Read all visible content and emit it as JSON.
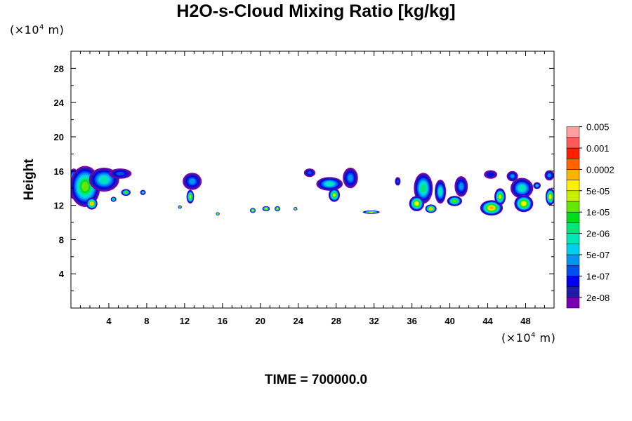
{
  "chart_data": {
    "type": "heatmap",
    "title": "H2O-s-Cloud Mixing Ratio [kg/kg]",
    "ylabel": "Height",
    "y_unit_prefix": "(×10",
    "y_unit_exp": "4",
    "y_unit_suffix": " m)",
    "x_unit_prefix": "(×10",
    "x_unit_exp": "4",
    "x_unit_suffix": " m)",
    "footer": "TIME = 700000.0",
    "xlim": [
      0,
      51
    ],
    "ylim": [
      0,
      30
    ],
    "x_ticks": [
      "4",
      "8",
      "12",
      "16",
      "20",
      "24",
      "28",
      "32",
      "36",
      "40",
      "44",
      "48"
    ],
    "y_ticks": [
      "4",
      "8",
      "12",
      "16",
      "20",
      "24",
      "28"
    ],
    "colorbar": {
      "colors": [
        "#7a00b4",
        "#1c1ca6",
        "#0000f0",
        "#0050f0",
        "#0096f0",
        "#00d0f0",
        "#00e6b4",
        "#00e678",
        "#00dc1e",
        "#64e600",
        "#c8f000",
        "#fff000",
        "#ffb400",
        "#ff6400",
        "#ff1e00",
        "#ff5a5a",
        "#ffa0a0"
      ],
      "labels": [
        "2e-08",
        "1e-07",
        "5e-07",
        "2e-06",
        "1e-05",
        "5e-05",
        "0.0002",
        "0.001",
        "0.005"
      ],
      "label_positions": [
        1,
        3,
        5,
        7,
        9,
        11,
        13,
        15,
        17
      ]
    },
    "cloud_blobs": [
      {
        "x": 0.3,
        "y": 14.5,
        "rx": 0.6,
        "ry": 1.8,
        "level": 11
      },
      {
        "x": 1.5,
        "y": 14.2,
        "rx": 1.6,
        "ry": 2.4,
        "level": 9
      },
      {
        "x": 3.5,
        "y": 15.0,
        "rx": 1.6,
        "ry": 1.4,
        "level": 6
      },
      {
        "x": 5.2,
        "y": 15.7,
        "rx": 1.2,
        "ry": 0.6,
        "level": 3
      },
      {
        "x": 2.2,
        "y": 12.2,
        "rx": 0.6,
        "ry": 0.7,
        "level": 12
      },
      {
        "x": 4.5,
        "y": 12.7,
        "rx": 0.3,
        "ry": 0.3,
        "level": 8
      },
      {
        "x": 5.8,
        "y": 13.5,
        "rx": 0.5,
        "ry": 0.4,
        "level": 9
      },
      {
        "x": 7.6,
        "y": 13.5,
        "rx": 0.3,
        "ry": 0.3,
        "level": 6
      },
      {
        "x": 12.8,
        "y": 14.8,
        "rx": 1.0,
        "ry": 1.0,
        "level": 4
      },
      {
        "x": 12.6,
        "y": 13.0,
        "rx": 0.4,
        "ry": 0.8,
        "level": 10
      },
      {
        "x": 11.5,
        "y": 11.8,
        "rx": 0.2,
        "ry": 0.2,
        "level": 9
      },
      {
        "x": 15.5,
        "y": 11.0,
        "rx": 0.2,
        "ry": 0.2,
        "level": 10
      },
      {
        "x": 19.2,
        "y": 11.4,
        "rx": 0.3,
        "ry": 0.3,
        "level": 11
      },
      {
        "x": 20.6,
        "y": 11.6,
        "rx": 0.4,
        "ry": 0.3,
        "level": 11
      },
      {
        "x": 21.8,
        "y": 11.6,
        "rx": 0.3,
        "ry": 0.3,
        "level": 11
      },
      {
        "x": 23.7,
        "y": 11.6,
        "rx": 0.2,
        "ry": 0.2,
        "level": 10
      },
      {
        "x": 25.2,
        "y": 15.8,
        "rx": 0.6,
        "ry": 0.5,
        "level": 3
      },
      {
        "x": 27.3,
        "y": 14.5,
        "rx": 1.4,
        "ry": 0.8,
        "level": 6
      },
      {
        "x": 27.8,
        "y": 13.2,
        "rx": 0.6,
        "ry": 0.8,
        "level": 10
      },
      {
        "x": 29.5,
        "y": 15.2,
        "rx": 0.8,
        "ry": 1.2,
        "level": 4
      },
      {
        "x": 31.7,
        "y": 11.2,
        "rx": 0.9,
        "ry": 0.2,
        "level": 10
      },
      {
        "x": 34.5,
        "y": 14.8,
        "rx": 0.3,
        "ry": 0.5,
        "level": 3
      },
      {
        "x": 37.2,
        "y": 14.0,
        "rx": 1.0,
        "ry": 1.8,
        "level": 7
      },
      {
        "x": 36.5,
        "y": 12.2,
        "rx": 0.8,
        "ry": 0.9,
        "level": 11
      },
      {
        "x": 38.0,
        "y": 11.6,
        "rx": 0.6,
        "ry": 0.5,
        "level": 12
      },
      {
        "x": 39.0,
        "y": 13.6,
        "rx": 0.6,
        "ry": 1.4,
        "level": 6
      },
      {
        "x": 41.2,
        "y": 14.2,
        "rx": 0.7,
        "ry": 1.2,
        "level": 4
      },
      {
        "x": 40.5,
        "y": 12.5,
        "rx": 0.8,
        "ry": 0.6,
        "level": 9
      },
      {
        "x": 44.4,
        "y": 11.7,
        "rx": 1.2,
        "ry": 0.9,
        "level": 12
      },
      {
        "x": 45.3,
        "y": 13.0,
        "rx": 0.6,
        "ry": 1.0,
        "level": 10
      },
      {
        "x": 44.3,
        "y": 15.6,
        "rx": 0.7,
        "ry": 0.5,
        "level": 2
      },
      {
        "x": 46.6,
        "y": 15.4,
        "rx": 0.6,
        "ry": 0.6,
        "level": 4
      },
      {
        "x": 47.6,
        "y": 14.0,
        "rx": 1.2,
        "ry": 1.2,
        "level": 6
      },
      {
        "x": 47.8,
        "y": 12.2,
        "rx": 1.0,
        "ry": 1.0,
        "level": 11
      },
      {
        "x": 49.2,
        "y": 14.3,
        "rx": 0.4,
        "ry": 0.4,
        "level": 5
      },
      {
        "x": 50.5,
        "y": 15.5,
        "rx": 0.5,
        "ry": 0.6,
        "level": 4
      },
      {
        "x": 50.6,
        "y": 13.0,
        "rx": 0.5,
        "ry": 1.0,
        "level": 11
      }
    ]
  }
}
